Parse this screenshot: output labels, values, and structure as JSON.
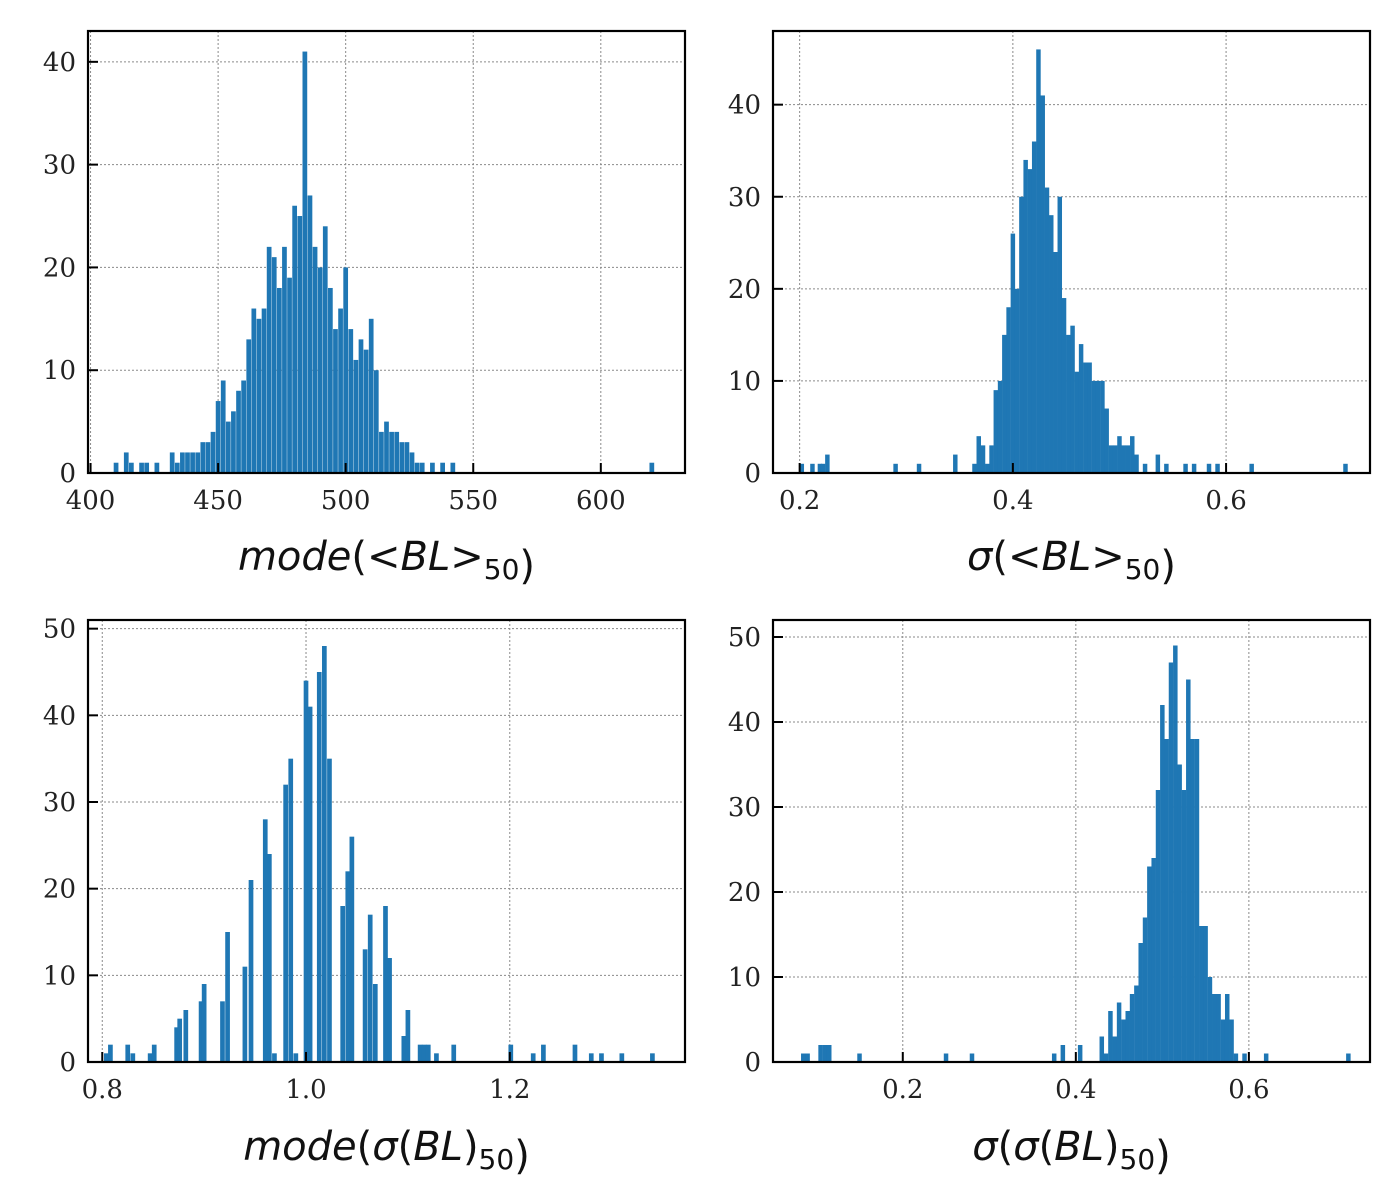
{
  "chart_data": [
    {
      "type": "bar",
      "panel": "top-left",
      "xlabel_parts": [
        {
          "text": "mode",
          "style": "italic"
        },
        {
          "text": "(",
          "style": "normal"
        },
        {
          "text": "<BL>",
          "style": "italic"
        },
        {
          "text": "50",
          "style": "sub"
        },
        {
          "text": ")",
          "style": "normal"
        }
      ],
      "xlim": [
        399,
        633
      ],
      "ylim": [
        0,
        43
      ],
      "xticks": [
        400,
        450,
        500,
        550,
        600
      ],
      "xtick_labels": [
        "400",
        "450",
        "500",
        "550",
        "600"
      ],
      "yticks": [
        0,
        10,
        20,
        30,
        40
      ],
      "ytick_labels": [
        "0",
        "10",
        "20",
        "30",
        "40"
      ],
      "grid": true,
      "bar_color": "#1f77b4",
      "bin_width": 1.85,
      "x": [
        410,
        414,
        416,
        420,
        422,
        426,
        432,
        434,
        436,
        438,
        440,
        442,
        444,
        446,
        448,
        450,
        452,
        454,
        456,
        458,
        460,
        462,
        464,
        466,
        468,
        470,
        472,
        474,
        476,
        478,
        480,
        482,
        484,
        486,
        488,
        490,
        492,
        494,
        496,
        498,
        500,
        502,
        504,
        506,
        508,
        510,
        512,
        514,
        516,
        518,
        520,
        522,
        524,
        526,
        528,
        530,
        534,
        538,
        542,
        620
      ],
      "values": [
        1,
        2,
        1,
        1,
        1,
        1,
        2,
        1,
        2,
        2,
        2,
        2,
        3,
        3,
        4,
        7,
        9,
        5,
        6,
        8,
        9,
        13,
        16,
        15,
        16,
        22,
        21,
        18,
        22,
        19,
        26,
        25,
        41,
        27,
        22,
        20,
        24,
        18,
        14,
        16,
        20,
        14,
        11,
        13,
        12,
        15,
        10,
        4,
        5,
        4,
        4,
        3,
        3,
        2,
        1,
        1,
        1,
        1,
        1,
        1
      ]
    },
    {
      "type": "bar",
      "panel": "top-right",
      "xlabel_parts": [
        {
          "text": "σ",
          "style": "italic"
        },
        {
          "text": "(",
          "style": "normal"
        },
        {
          "text": "<BL>",
          "style": "italic"
        },
        {
          "text": "50",
          "style": "sub"
        },
        {
          "text": ")",
          "style": "normal"
        }
      ],
      "xlim": [
        0.175,
        0.735
      ],
      "ylim": [
        0,
        48
      ],
      "xticks": [
        0.2,
        0.4,
        0.6
      ],
      "xtick_labels": [
        "0.2",
        "0.4",
        "0.6"
      ],
      "yticks": [
        0,
        10,
        20,
        30,
        40
      ],
      "ytick_labels": [
        "0",
        "10",
        "20",
        "30",
        "40"
      ],
      "grid": true,
      "bar_color": "#1f77b4",
      "bin_width": 0.0042,
      "x": [
        0.202,
        0.212,
        0.219,
        0.222,
        0.226,
        0.29,
        0.312,
        0.346,
        0.364,
        0.368,
        0.372,
        0.376,
        0.38,
        0.384,
        0.388,
        0.392,
        0.396,
        0.4,
        0.404,
        0.408,
        0.412,
        0.416,
        0.42,
        0.424,
        0.428,
        0.432,
        0.436,
        0.44,
        0.444,
        0.448,
        0.452,
        0.456,
        0.46,
        0.464,
        0.468,
        0.472,
        0.476,
        0.48,
        0.484,
        0.488,
        0.492,
        0.496,
        0.5,
        0.504,
        0.508,
        0.512,
        0.516,
        0.524,
        0.536,
        0.544,
        0.562,
        0.57,
        0.584,
        0.592,
        0.624,
        0.712
      ],
      "values": [
        1,
        1,
        1,
        1,
        2,
        1,
        1,
        2,
        1,
        4,
        3,
        1,
        3,
        9,
        10,
        15,
        18,
        26,
        20,
        30,
        34,
        33,
        36,
        46,
        41,
        31,
        28,
        24,
        30,
        19,
        15,
        16,
        11,
        14,
        12,
        12,
        10,
        10,
        10,
        7,
        3,
        3,
        4,
        3,
        3,
        4,
        2,
        1,
        2,
        1,
        1,
        1,
        1,
        1,
        1,
        1
      ]
    },
    {
      "type": "bar",
      "panel": "bottom-left",
      "xlabel_parts": [
        {
          "text": "mode",
          "style": "italic"
        },
        {
          "text": "(",
          "style": "normal"
        },
        {
          "text": "σ",
          "style": "italic"
        },
        {
          "text": "(",
          "style": "normal"
        },
        {
          "text": "BL",
          "style": "italic"
        },
        {
          "text": ")",
          "style": "normal"
        },
        {
          "text": "50",
          "style": "sub"
        },
        {
          "text": ")",
          "style": "normal"
        }
      ],
      "xlim": [
        0.786,
        1.372
      ],
      "ylim": [
        0,
        51
      ],
      "xticks": [
        0.8,
        1.0,
        1.2
      ],
      "xtick_labels": [
        "0.8",
        "1.0",
        "1.2"
      ],
      "yticks": [
        0,
        10,
        20,
        30,
        40,
        50
      ],
      "ytick_labels": [
        "0",
        "10",
        "20",
        "30",
        "40",
        "50"
      ],
      "grid": true,
      "bar_color": "#1f77b4",
      "bin_width": 0.0046,
      "x": [
        0.804,
        0.808,
        0.825,
        0.83,
        0.847,
        0.851,
        0.873,
        0.876,
        0.882,
        0.897,
        0.9,
        0.918,
        0.923,
        0.94,
        0.946,
        0.96,
        0.964,
        0.969,
        0.98,
        0.985,
        0.99,
        1.0,
        1.004,
        1.013,
        1.018,
        1.023,
        1.036,
        1.041,
        1.045,
        1.058,
        1.063,
        1.068,
        1.078,
        1.082,
        1.096,
        1.1,
        1.112,
        1.116,
        1.12,
        1.128,
        1.145,
        1.201,
        1.223,
        1.233,
        1.264,
        1.28,
        1.29,
        1.31,
        1.34
      ],
      "values": [
        1,
        2,
        2,
        1,
        1,
        2,
        4,
        5,
        6,
        7,
        9,
        7,
        15,
        11,
        21,
        28,
        24,
        1,
        32,
        35,
        1,
        44,
        41,
        45,
        48,
        35,
        18,
        22,
        26,
        13,
        17,
        9,
        18,
        12,
        3,
        6,
        2,
        2,
        2,
        1,
        2,
        2,
        1,
        2,
        2,
        1,
        1,
        1,
        1
      ]
    },
    {
      "type": "bar",
      "panel": "bottom-right",
      "xlabel_parts": [
        {
          "text": "σ",
          "style": "italic"
        },
        {
          "text": "(",
          "style": "normal"
        },
        {
          "text": "σ",
          "style": "italic"
        },
        {
          "text": "(",
          "style": "normal"
        },
        {
          "text": "BL",
          "style": "italic"
        },
        {
          "text": ")",
          "style": "normal"
        },
        {
          "text": "50",
          "style": "sub"
        },
        {
          "text": ")",
          "style": "normal"
        }
      ],
      "xlim": [
        0.05,
        0.74
      ],
      "ylim": [
        0,
        52
      ],
      "xticks": [
        0.2,
        0.4,
        0.6
      ],
      "xtick_labels": [
        "0.2",
        "0.4",
        "0.6"
      ],
      "yticks": [
        0,
        10,
        20,
        30,
        40,
        50
      ],
      "ytick_labels": [
        "0",
        "10",
        "20",
        "30",
        "40",
        "50"
      ],
      "grid": true,
      "bar_color": "#1f77b4",
      "bin_width": 0.0052,
      "x": [
        0.085,
        0.09,
        0.105,
        0.11,
        0.115,
        0.15,
        0.25,
        0.28,
        0.375,
        0.385,
        0.405,
        0.43,
        0.435,
        0.44,
        0.445,
        0.45,
        0.455,
        0.46,
        0.465,
        0.47,
        0.475,
        0.48,
        0.485,
        0.49,
        0.495,
        0.5,
        0.505,
        0.51,
        0.515,
        0.52,
        0.525,
        0.53,
        0.535,
        0.54,
        0.545,
        0.55,
        0.555,
        0.56,
        0.565,
        0.57,
        0.575,
        0.58,
        0.585,
        0.595,
        0.62,
        0.715
      ],
      "values": [
        1,
        1,
        2,
        2,
        2,
        1,
        1,
        1,
        1,
        2,
        2,
        3,
        1,
        6,
        3,
        7,
        5,
        6,
        8,
        9,
        14,
        17,
        23,
        24,
        32,
        42,
        38,
        47,
        49,
        35,
        32,
        45,
        38,
        38,
        16,
        16,
        10,
        8,
        8,
        5,
        8,
        5,
        1,
        1,
        1,
        1
      ]
    }
  ]
}
